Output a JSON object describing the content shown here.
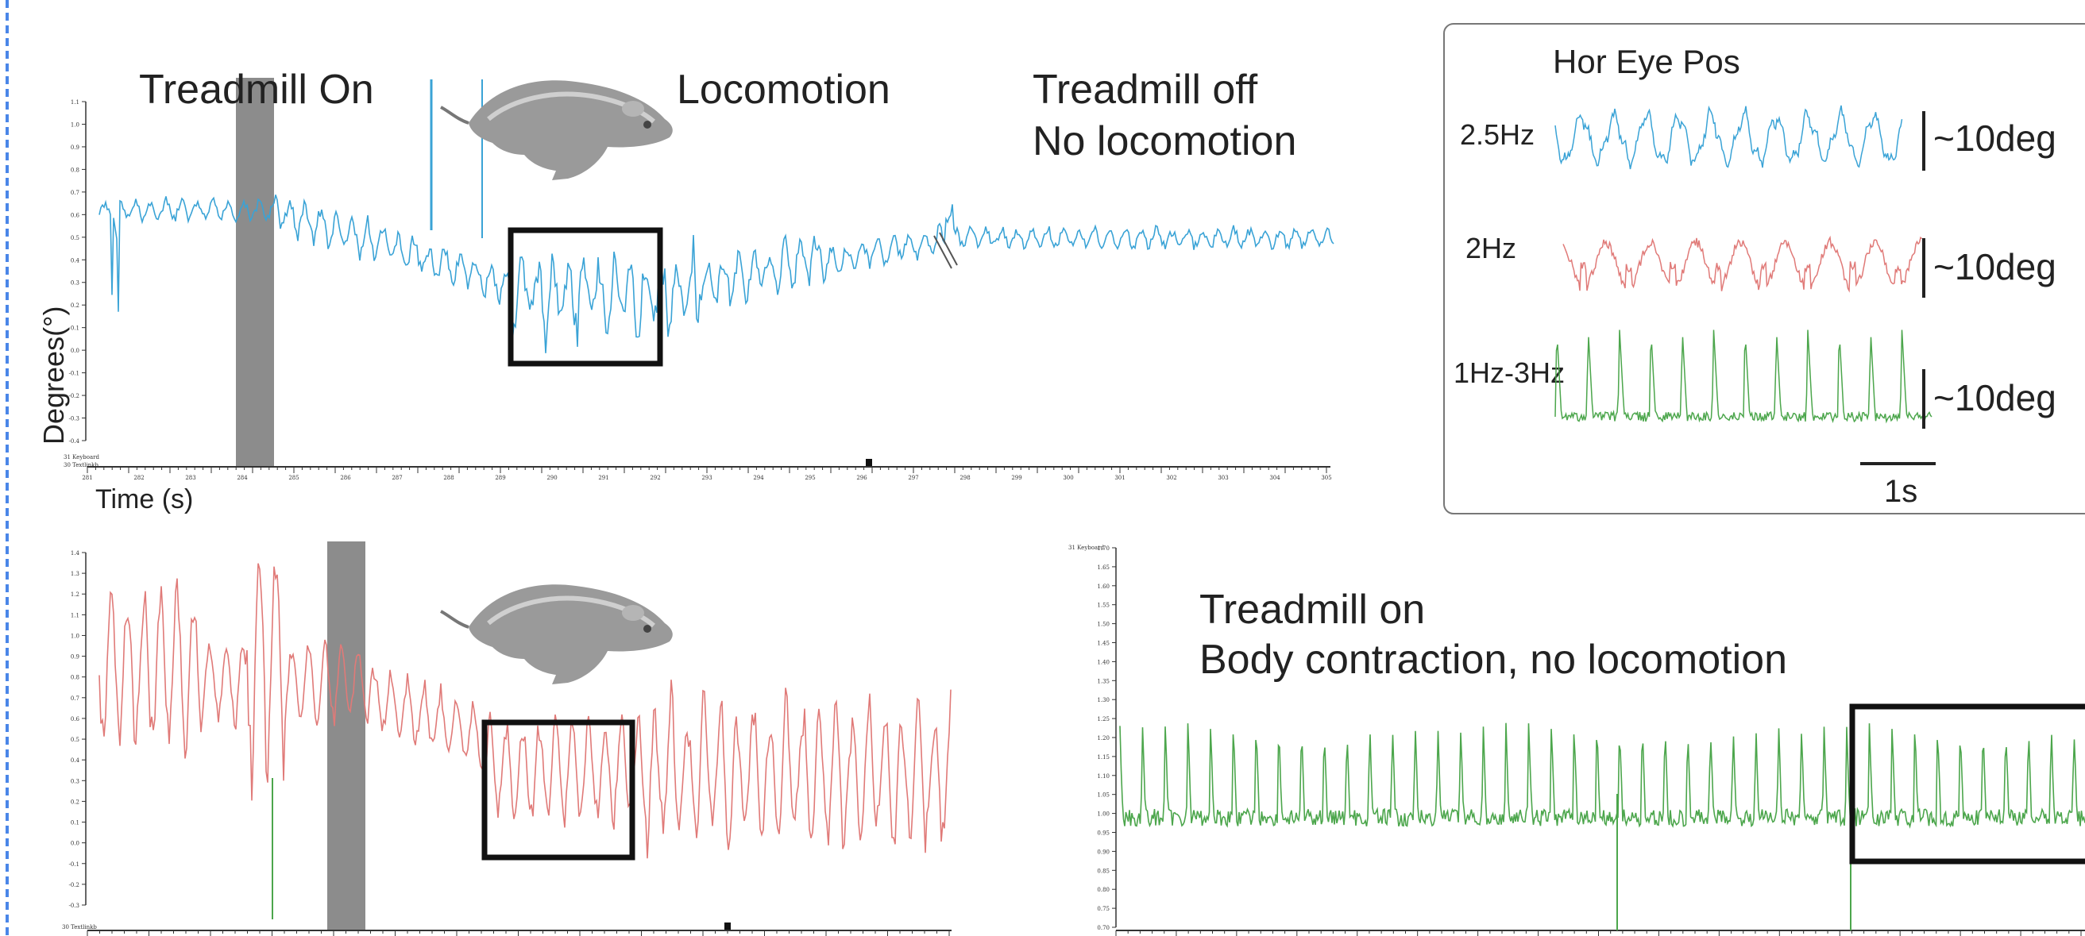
{
  "colors": {
    "blue": "#3aa3d6",
    "red": "#e07a78",
    "green": "#4ca64c",
    "gray_bar": "#8c8c8c",
    "box": "#111111"
  },
  "icons": [
    "mouse-illustration"
  ],
  "top_panel": {
    "ylabel": "Degrees(°)",
    "xlabel": "Time (s)",
    "label_treadmill_on": "Treadmill On",
    "label_locomotion": "Locomotion",
    "label_treadmill_off_1": "Treadmill off",
    "label_treadmill_off_2": "No locomotion",
    "channel_labels": [
      "31 Keyboard",
      "30 Textlinkb"
    ],
    "y_ticks": [
      "1.1",
      "1.0",
      "0.9",
      "0.8",
      "0.7",
      "0.6",
      "0.5",
      "0.4",
      "0.3",
      "0.2",
      "0.1",
      "0.0",
      "-0.1",
      "-0.2",
      "-0.3",
      "-0.4"
    ],
    "x_ticks": [
      "281",
      "282",
      "283",
      "284",
      "285",
      "286",
      "287",
      "288",
      "289",
      "290",
      "291",
      "292",
      "293",
      "294",
      "295",
      "296",
      "297",
      "298",
      "299",
      "300",
      "301",
      "302",
      "303",
      "304",
      "305"
    ]
  },
  "inset": {
    "title": "Hor Eye Pos",
    "rows": [
      {
        "label": "2.5Hz",
        "scale": "~10deg"
      },
      {
        "label": "2Hz",
        "scale": "~10deg"
      },
      {
        "label": "1Hz-3Hz",
        "scale": "~10deg"
      }
    ],
    "time_scale": "1s"
  },
  "bottom_left_panel": {
    "channel_label": "30 Textlinkb",
    "y_ticks": [
      "1.4",
      "1.3",
      "1.2",
      "1.1",
      "1.0",
      "0.9",
      "0.8",
      "0.7",
      "0.6",
      "0.5",
      "0.4",
      "0.3",
      "0.2",
      "0.1",
      "0.0",
      "-0.1",
      "-0.2",
      "-0.3"
    ]
  },
  "bottom_right_panel": {
    "label_line1": "Treadmill on",
    "label_line2": "Body contraction, no locomotion",
    "channel_label": "31 Keyboard",
    "y_ticks": [
      "1.70",
      "1.65",
      "1.60",
      "1.55",
      "1.50",
      "1.45",
      "1.40",
      "1.35",
      "1.30",
      "1.25",
      "1.20",
      "1.15",
      "1.10",
      "1.05",
      "1.00",
      "0.95",
      "0.90",
      "0.85",
      "0.80",
      "0.75",
      "0.70"
    ]
  },
  "chart_data": [
    {
      "type": "line",
      "ylabel": "Degrees(°)",
      "xlabel": "Time (s)",
      "ylim": [
        -0.45,
        1.15
      ],
      "xlim": [
        281,
        305
      ],
      "series": [
        {
          "color": "#3aa3d6",
          "x": [
            281,
            284,
            286,
            289,
            290,
            292,
            294,
            296,
            298,
            300,
            302,
            305
          ],
          "y": [
            0.6,
            0.6,
            0.55,
            0.5,
            0.3,
            0.35,
            0.25,
            0.25,
            0.35,
            0.45,
            0.6,
            0.6
          ]
        }
      ],
      "annotations": [
        "Treadmill On",
        "Locomotion",
        "Treadmill off",
        "No locomotion"
      ],
      "grid": false
    },
    {
      "type": "line",
      "title": "Hor Eye Pos",
      "series": [
        {
          "name": "2.5Hz",
          "frequency_hz": 2.5,
          "amplitude_deg": 10
        },
        {
          "name": "2Hz",
          "frequency_hz": 2.0,
          "amplitude_deg": 10
        },
        {
          "name": "1Hz-3Hz",
          "frequency_hz": [
            1,
            3
          ],
          "amplitude_deg": 10
        }
      ],
      "time_scale_s": 1
    },
    {
      "type": "line",
      "ylim": [
        -0.3,
        1.45
      ],
      "series": [
        {
          "color": "#e07a78",
          "x": [
            0,
            0.25,
            0.45,
            0.6,
            0.85,
            1.0
          ],
          "y": [
            0.8,
            0.75,
            0.7,
            0.3,
            0.5,
            0.45
          ]
        }
      ],
      "grid": false
    },
    {
      "type": "line",
      "ylim": [
        0.7,
        1.7
      ],
      "series": [
        {
          "color": "#4ca64c",
          "baseline": 0.95,
          "peak": 1.2,
          "spike_count": 35
        }
      ],
      "annotations": [
        "Treadmill on",
        "Body contraction, no locomotion"
      ],
      "grid": false
    }
  ]
}
